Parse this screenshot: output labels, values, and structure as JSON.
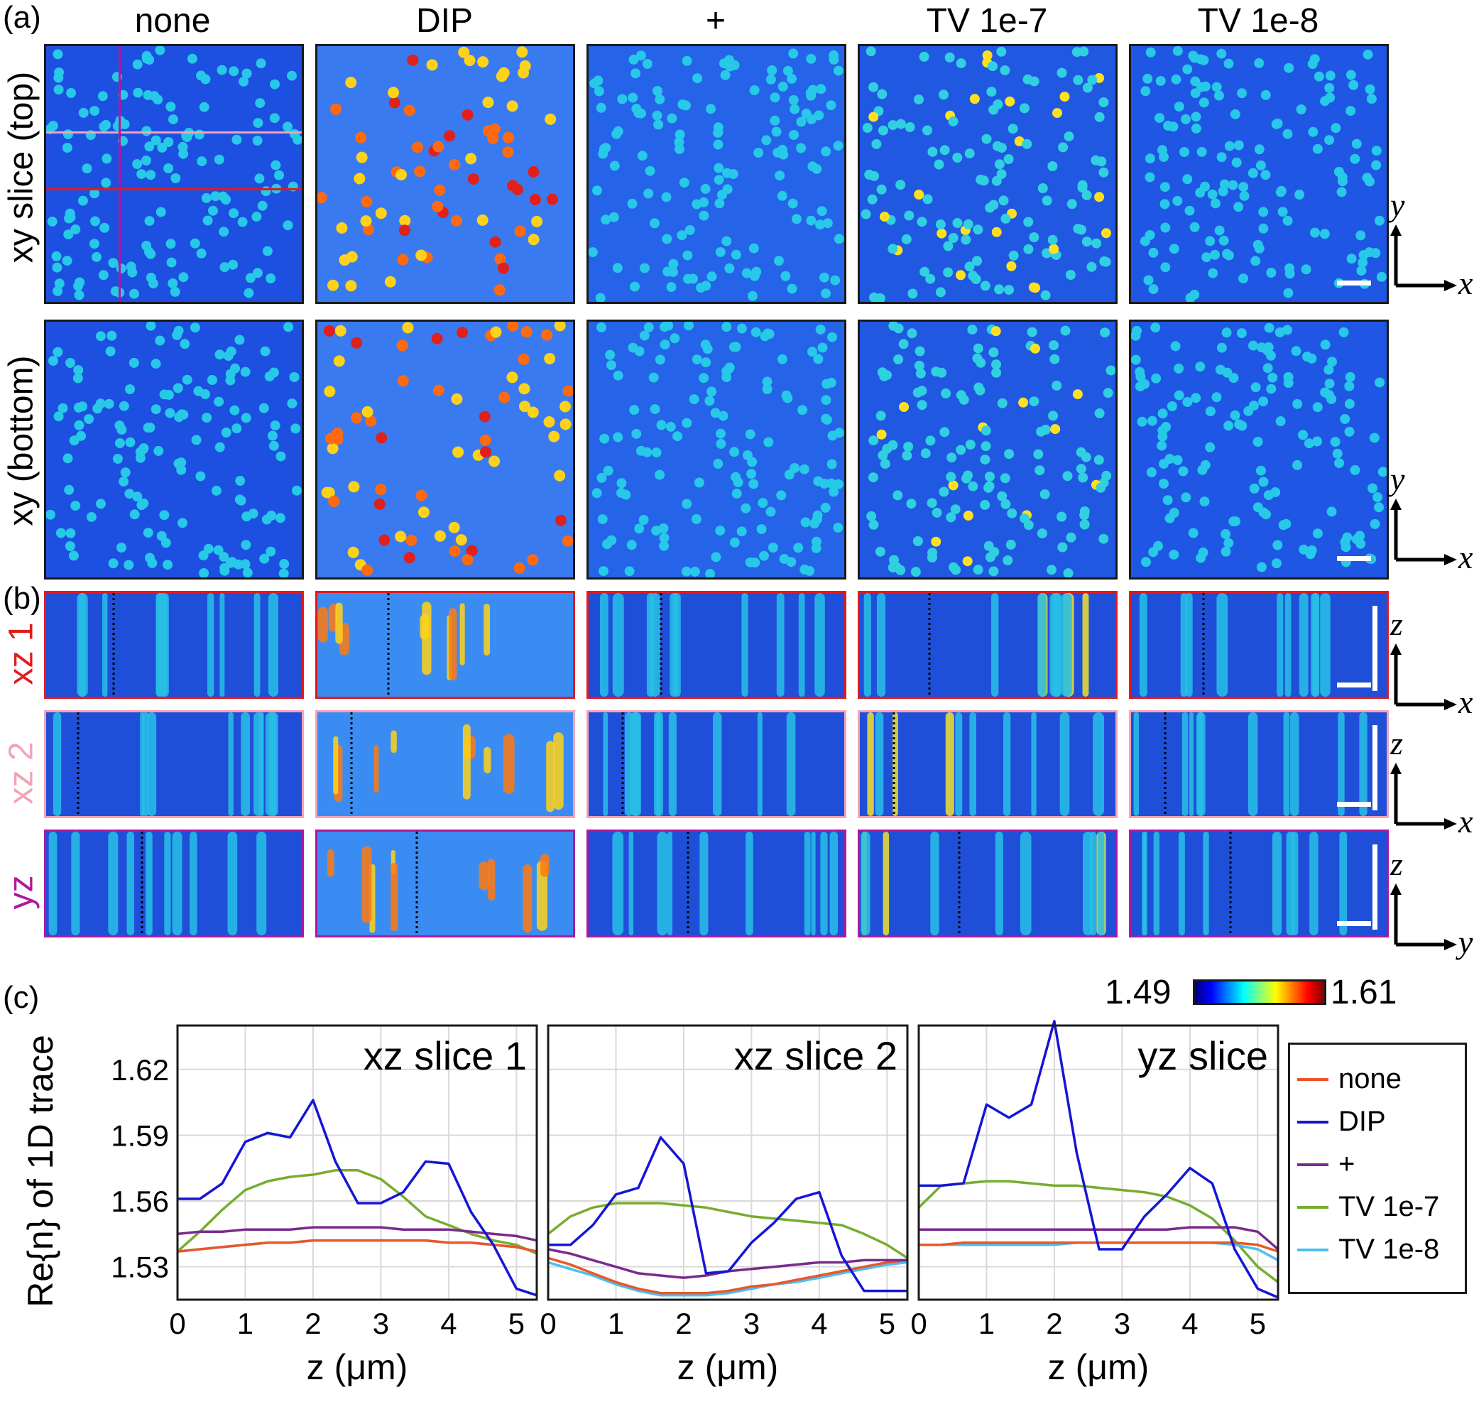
{
  "panel_labels": {
    "a": "(a)",
    "b": "(b)",
    "c": "(c)"
  },
  "columns": [
    "none",
    "DIP",
    "+",
    "TV 1e-7",
    "TV 1e-8"
  ],
  "row_labels": {
    "xy_top": "xy slice (top)",
    "xy_bottom": "xy (bottom)",
    "xz1": "xz 1",
    "xz2": "xz 2",
    "yz": "yz"
  },
  "row_label_colors": {
    "xz1": "#e31a1c",
    "xz2": "#f4a3b4",
    "yz": "#b0179e"
  },
  "axis_indicators": {
    "xy": {
      "vertical": "y",
      "horizontal": "x"
    },
    "xz": {
      "vertical": "z",
      "horizontal": "x"
    },
    "yz": {
      "vertical": "z",
      "horizontal": "y"
    }
  },
  "colorbar": {
    "min": "1.49",
    "max": "1.61"
  },
  "chart_data": [
    {
      "type": "line",
      "title": "xz slice 1",
      "xlabel": "z (μm)",
      "ylabel": "Re{n} of 1D trace",
      "xlim": [
        0,
        5.3
      ],
      "ylim": [
        1.515,
        1.64
      ],
      "xticks": [
        "0",
        "1",
        "2",
        "3",
        "4",
        "5"
      ],
      "yticks": [
        "1.53",
        "1.56",
        "1.59",
        "1.62"
      ],
      "x": [
        0,
        0.33,
        0.66,
        1.0,
        1.33,
        1.66,
        2.0,
        2.33,
        2.66,
        3.0,
        3.33,
        3.66,
        4.0,
        4.33,
        4.66,
        5.0,
        5.3
      ],
      "series": [
        {
          "name": "none",
          "color": "#e8572a",
          "values": [
            1.537,
            1.538,
            1.539,
            1.54,
            1.541,
            1.541,
            1.542,
            1.542,
            1.542,
            1.542,
            1.542,
            1.542,
            1.541,
            1.541,
            1.54,
            1.539,
            1.537
          ]
        },
        {
          "name": "DIP",
          "color": "#1515d6",
          "values": [
            1.561,
            1.561,
            1.568,
            1.587,
            1.591,
            1.589,
            1.606,
            1.578,
            1.559,
            1.559,
            1.564,
            1.578,
            1.577,
            1.555,
            1.54,
            1.52,
            1.517
          ]
        },
        {
          "name": "+",
          "color": "#7a2a8c",
          "values": [
            1.545,
            1.546,
            1.546,
            1.547,
            1.547,
            1.547,
            1.548,
            1.548,
            1.548,
            1.548,
            1.547,
            1.547,
            1.547,
            1.546,
            1.545,
            1.544,
            1.542
          ]
        },
        {
          "name": "TV 1e-7",
          "color": "#77ac30",
          "values": [
            1.537,
            1.546,
            1.556,
            1.565,
            1.569,
            1.571,
            1.572,
            1.574,
            1.574,
            1.57,
            1.562,
            1.553,
            1.549,
            1.545,
            1.542,
            1.54,
            1.536
          ]
        },
        {
          "name": "TV 1e-8",
          "color": "#4dbeee",
          "values": [
            1.537,
            1.538,
            1.539,
            1.54,
            1.541,
            1.541,
            1.542,
            1.542,
            1.542,
            1.542,
            1.542,
            1.542,
            1.541,
            1.541,
            1.54,
            1.539,
            1.537
          ]
        }
      ]
    },
    {
      "type": "line",
      "title": "xz slice 2",
      "xlabel": "z (μm)",
      "xlim": [
        0,
        5.3
      ],
      "ylim": [
        1.515,
        1.64
      ],
      "xticks": [
        "0",
        "1",
        "2",
        "3",
        "4",
        "5"
      ],
      "x": [
        0,
        0.33,
        0.66,
        1.0,
        1.33,
        1.66,
        2.0,
        2.33,
        2.66,
        3.0,
        3.33,
        3.66,
        4.0,
        4.33,
        4.66,
        5.0,
        5.3
      ],
      "series": [
        {
          "name": "none",
          "color": "#e8572a",
          "values": [
            1.534,
            1.531,
            1.527,
            1.523,
            1.52,
            1.518,
            1.518,
            1.518,
            1.519,
            1.521,
            1.522,
            1.524,
            1.526,
            1.528,
            1.53,
            1.532,
            1.533
          ]
        },
        {
          "name": "DIP",
          "color": "#1515d6",
          "values": [
            1.54,
            1.54,
            1.549,
            1.563,
            1.566,
            1.589,
            1.577,
            1.527,
            1.528,
            1.541,
            1.55,
            1.561,
            1.564,
            1.535,
            1.519,
            1.519,
            1.519
          ]
        },
        {
          "name": "+",
          "color": "#7a2a8c",
          "values": [
            1.538,
            1.536,
            1.533,
            1.53,
            1.527,
            1.526,
            1.525,
            1.526,
            1.528,
            1.529,
            1.53,
            1.531,
            1.532,
            1.532,
            1.533,
            1.533,
            1.533
          ]
        },
        {
          "name": "TV 1e-7",
          "color": "#77ac30",
          "values": [
            1.545,
            1.553,
            1.557,
            1.559,
            1.559,
            1.559,
            1.558,
            1.557,
            1.555,
            1.553,
            1.552,
            1.551,
            1.55,
            1.549,
            1.545,
            1.54,
            1.534
          ]
        },
        {
          "name": "TV 1e-8",
          "color": "#4dbeee",
          "values": [
            1.532,
            1.529,
            1.526,
            1.522,
            1.519,
            1.517,
            1.517,
            1.517,
            1.518,
            1.52,
            1.522,
            1.523,
            1.525,
            1.527,
            1.529,
            1.531,
            1.532
          ]
        }
      ]
    },
    {
      "type": "line",
      "title": "yz slice",
      "xlabel": "z (μm)",
      "xlim": [
        0,
        5.3
      ],
      "ylim": [
        1.515,
        1.64
      ],
      "xticks": [
        "0",
        "1",
        "2",
        "3",
        "4",
        "5"
      ],
      "x": [
        0,
        0.33,
        0.66,
        1.0,
        1.33,
        1.66,
        2.0,
        2.33,
        2.66,
        3.0,
        3.33,
        3.66,
        4.0,
        4.33,
        4.66,
        5.0,
        5.3
      ],
      "series": [
        {
          "name": "none",
          "color": "#e8572a",
          "values": [
            1.54,
            1.54,
            1.541,
            1.541,
            1.541,
            1.541,
            1.541,
            1.541,
            1.541,
            1.541,
            1.541,
            1.541,
            1.541,
            1.541,
            1.541,
            1.54,
            1.537
          ]
        },
        {
          "name": "DIP",
          "color": "#1515d6",
          "values": [
            1.567,
            1.567,
            1.568,
            1.604,
            1.598,
            1.604,
            1.642,
            1.582,
            1.538,
            1.538,
            1.553,
            1.563,
            1.575,
            1.568,
            1.538,
            1.52,
            1.516
          ]
        },
        {
          "name": "+",
          "color": "#7a2a8c",
          "values": [
            1.547,
            1.547,
            1.547,
            1.547,
            1.547,
            1.547,
            1.547,
            1.547,
            1.547,
            1.547,
            1.547,
            1.547,
            1.548,
            1.548,
            1.548,
            1.546,
            1.538
          ]
        },
        {
          "name": "TV 1e-7",
          "color": "#77ac30",
          "values": [
            1.557,
            1.567,
            1.568,
            1.569,
            1.569,
            1.568,
            1.567,
            1.567,
            1.566,
            1.565,
            1.564,
            1.562,
            1.558,
            1.552,
            1.542,
            1.53,
            1.523
          ]
        },
        {
          "name": "TV 1e-8",
          "color": "#4dbeee",
          "values": [
            1.54,
            1.54,
            1.54,
            1.54,
            1.54,
            1.54,
            1.54,
            1.541,
            1.541,
            1.541,
            1.541,
            1.541,
            1.541,
            1.541,
            1.54,
            1.538,
            1.533
          ]
        }
      ]
    }
  ],
  "legend": [
    "none",
    "DIP",
    "+",
    "TV 1e-7",
    "TV 1e-8"
  ]
}
